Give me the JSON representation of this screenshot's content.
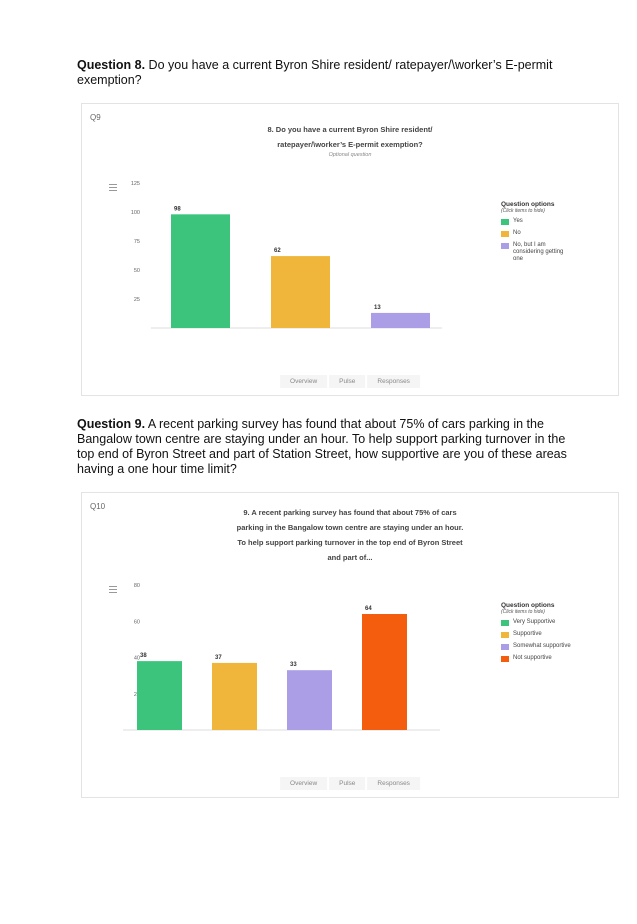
{
  "question8": {
    "label": "Question 8.",
    "text": " Do you have a current Byron Shire resident/ ratepayer/\\worker’s E-permit exemption?"
  },
  "question9": {
    "label": "Question 9.",
    "text": " A recent parking survey has found that about 75% of cars parking in the Bangalow town centre are staying under an hour. To help support parking turnover in the top end of Byron Street and part of Station Street, how supportive are you of these areas having a one hour time limit?"
  },
  "panel1": {
    "qnum": "Q9",
    "title_lines": [
      "8. Do you have a current Byron Shire resident/",
      "ratepayer/\\worker’s E-permit exemption?"
    ],
    "subtitle": "Optional question",
    "legend_title": "Question options",
    "legend_hint": "(Click items to hide)",
    "tabs": [
      "Overview",
      "Pulse",
      "Responses"
    ]
  },
  "panel2": {
    "qnum": "Q10",
    "title_lines": [
      "9. A recent parking survey has found that about 75% of cars",
      "parking in the Bangalow town centre are staying under an hour.",
      "To help support parking turnover in the top end of Byron Street",
      "and part of..."
    ],
    "legend_title": "Question options",
    "legend_hint": "(Click items to hide)",
    "tabs": [
      "Overview",
      "Pulse",
      "Responses"
    ]
  },
  "chart_data": [
    {
      "type": "bar",
      "categories": [
        "Yes",
        "No",
        "No, but I am considering getting one"
      ],
      "values": [
        98,
        62,
        13
      ],
      "colors": [
        "#3cc47c",
        "#efb63b",
        "#ab9ee6"
      ],
      "yticks": [
        25,
        50,
        75,
        100,
        125
      ],
      "ylim": [
        0,
        125
      ],
      "legend": "right"
    },
    {
      "type": "bar",
      "categories": [
        "Very Supportive",
        "Supportive",
        "Somewhat supportive",
        "Not supportive"
      ],
      "values": [
        38,
        37,
        33,
        64
      ],
      "colors": [
        "#3cc47c",
        "#efb63b",
        "#ab9ee6",
        "#f45d0e"
      ],
      "yticks": [
        20,
        40,
        60,
        80
      ],
      "ylim": [
        0,
        80
      ],
      "legend": "right"
    }
  ]
}
